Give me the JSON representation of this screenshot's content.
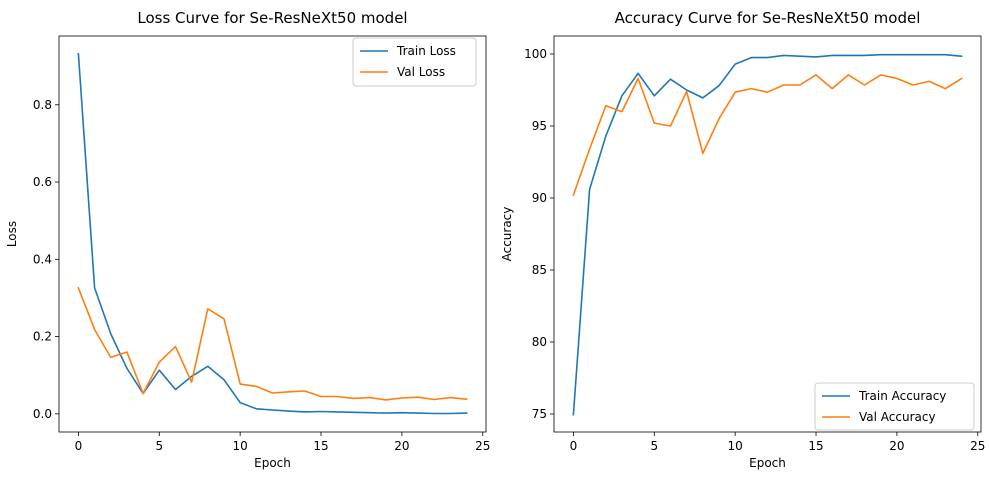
{
  "chart_data": [
    {
      "type": "line",
      "title": "Loss Curve for Se-ResNeXt50 model",
      "xlabel": "Epoch",
      "ylabel": "Loss",
      "xlim": [
        -1.2,
        25.2
      ],
      "ylim": [
        -0.047,
        0.978
      ],
      "xticks": [
        0,
        5,
        10,
        15,
        20,
        25
      ],
      "yticks": [
        0.0,
        0.2,
        0.4,
        0.6,
        0.8
      ],
      "ytick_decimals": 1,
      "grid": false,
      "legend_position": "upper right",
      "x": [
        0,
        1,
        2,
        3,
        4,
        5,
        6,
        7,
        8,
        9,
        10,
        11,
        12,
        13,
        14,
        15,
        16,
        17,
        18,
        19,
        20,
        21,
        22,
        23,
        24
      ],
      "series": [
        {
          "name": "Train Loss",
          "color": "#1f77b4",
          "values": [
            0.932,
            0.326,
            0.207,
            0.118,
            0.053,
            0.113,
            0.063,
            0.097,
            0.123,
            0.088,
            0.029,
            0.013,
            0.01,
            0.007,
            0.005,
            0.006,
            0.005,
            0.004,
            0.003,
            0.002,
            0.003,
            0.002,
            0.001,
            0.001,
            0.002
          ]
        },
        {
          "name": "Val Loss",
          "color": "#ff7f0e",
          "values": [
            0.326,
            0.218,
            0.146,
            0.16,
            0.053,
            0.134,
            0.174,
            0.082,
            0.272,
            0.246,
            0.077,
            0.071,
            0.054,
            0.057,
            0.059,
            0.045,
            0.045,
            0.04,
            0.042,
            0.036,
            0.041,
            0.043,
            0.037,
            0.042,
            0.038
          ]
        }
      ]
    },
    {
      "type": "line",
      "title": "Accuracy Curve for Se-ResNeXt50 model",
      "xlabel": "Epoch",
      "ylabel": "Accuracy",
      "xlim": [
        -1.2,
        25.2
      ],
      "ylim": [
        73.75,
        101.25
      ],
      "xticks": [
        0,
        5,
        10,
        15,
        20,
        25
      ],
      "yticks": [
        75,
        80,
        85,
        90,
        95,
        100
      ],
      "ytick_decimals": 0,
      "grid": false,
      "legend_position": "lower right",
      "x": [
        0,
        1,
        2,
        3,
        4,
        5,
        6,
        7,
        8,
        9,
        10,
        11,
        12,
        13,
        14,
        15,
        16,
        17,
        18,
        19,
        20,
        21,
        22,
        23,
        24
      ],
      "series": [
        {
          "name": "Train Accuracy",
          "color": "#1f77b4",
          "values": [
            74.95,
            90.6,
            94.3,
            97.1,
            98.65,
            97.1,
            98.25,
            97.5,
            96.95,
            97.8,
            99.3,
            99.75,
            99.75,
            99.9,
            99.85,
            99.8,
            99.9,
            99.9,
            99.9,
            99.95,
            99.95,
            99.95,
            99.95,
            99.95,
            99.85
          ]
        },
        {
          "name": "Val Accuracy",
          "color": "#ff7f0e",
          "values": [
            90.2,
            93.4,
            96.4,
            96.0,
            98.3,
            95.2,
            95.0,
            97.4,
            93.1,
            95.5,
            97.35,
            97.6,
            97.35,
            97.85,
            97.85,
            98.55,
            97.6,
            98.55,
            97.85,
            98.55,
            98.3,
            97.85,
            98.1,
            97.6,
            98.3
          ]
        }
      ]
    }
  ]
}
